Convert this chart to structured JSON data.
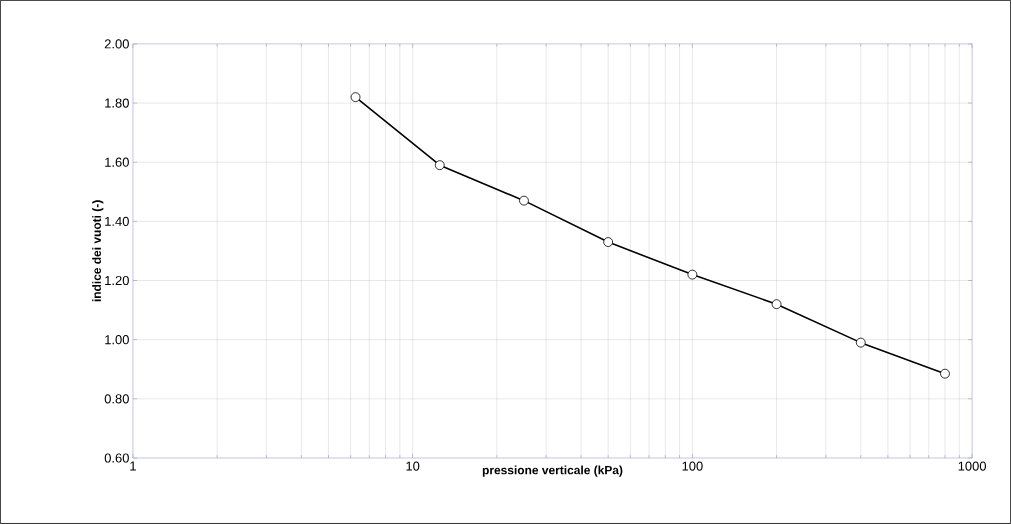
{
  "chart_data": {
    "type": "line",
    "xlabel": "pressione verticale (kPa)",
    "ylabel": "indice dei vuoti (-)",
    "x": [
      6.25,
      12.5,
      25,
      50,
      100,
      200,
      400,
      800
    ],
    "series": [
      {
        "color": "#000000",
        "values": [
          1.82,
          1.59,
          1.47,
          1.33,
          1.22,
          1.12,
          0.99,
          0.885
        ]
      }
    ],
    "log": "x",
    "xlim": [
      1,
      1000
    ],
    "xticks": [
      1,
      10,
      100,
      1000
    ],
    "ylim": [
      0.6,
      2.0
    ],
    "yticks": [
      {
        "value": 0.6,
        "label": "0.60"
      },
      {
        "value": 0.8,
        "label": "0.80"
      },
      {
        "value": 1.0,
        "label": "1.00"
      },
      {
        "value": 1.2,
        "label": "1.20"
      },
      {
        "value": 1.4,
        "label": "1.40"
      },
      {
        "value": 1.6,
        "label": "1.60"
      },
      {
        "value": 1.8,
        "label": "1.80"
      },
      {
        "value": 2.0,
        "label": "2.00"
      }
    ],
    "grid": true,
    "marker": "circle",
    "line_style": "solid"
  }
}
